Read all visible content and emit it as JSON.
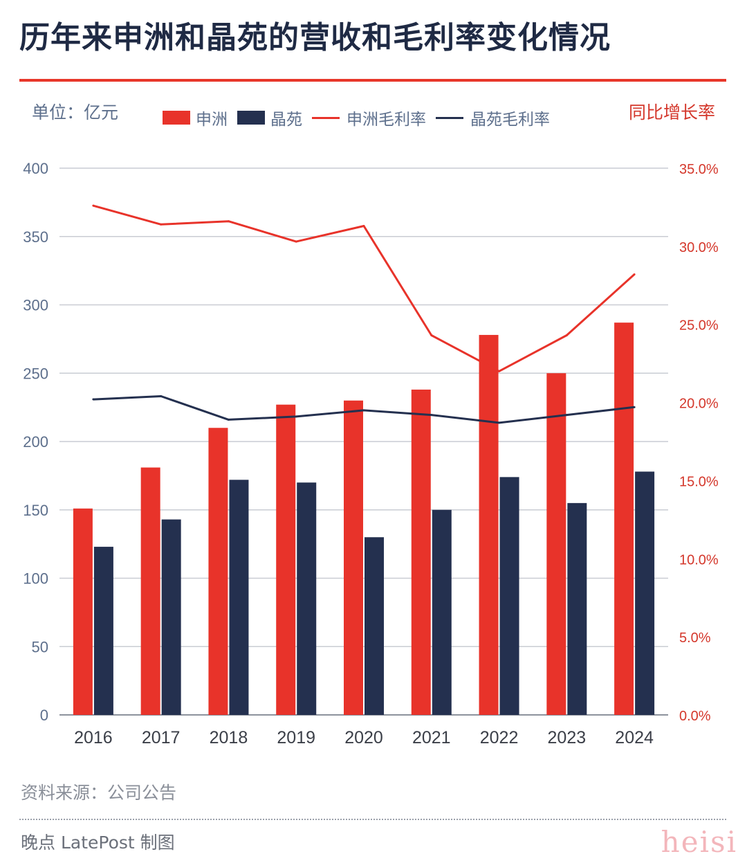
{
  "title": "历年来申洲和晶苑的营收和毛利率变化情况",
  "unit_label": "单位：亿元",
  "right_axis_label": "同比增长率",
  "legend": {
    "shenzhou_bar": "申洲",
    "jingyuan_bar": "晶苑",
    "shenzhou_line": "申洲毛利率",
    "jingyuan_line": "晶苑毛利率"
  },
  "colors": {
    "shenzhou": "#e8332a",
    "jingyuan": "#24304f",
    "grid": "#c9ccd3",
    "left_tick": "#5d6f8c",
    "right_tick": "#d4372b",
    "x_tick": "#3b3f48"
  },
  "footer": {
    "source": "资料来源：公司公告",
    "brand": "晚点 LatePost 制图",
    "corner_mark": "heisi"
  },
  "chart_data": {
    "type": "bar",
    "title": "历年来申洲和晶苑的营收和毛利率变化情况",
    "categories": [
      "2016",
      "2017",
      "2018",
      "2019",
      "2020",
      "2021",
      "2022",
      "2023",
      "2024"
    ],
    "series": [
      {
        "name": "申洲",
        "kind": "bar",
        "axis": "left",
        "values": [
          151,
          181,
          210,
          227,
          230,
          238,
          278,
          250,
          287
        ]
      },
      {
        "name": "晶苑",
        "kind": "bar",
        "axis": "left",
        "values": [
          123,
          143,
          172,
          170,
          130,
          150,
          174,
          155,
          178
        ]
      },
      {
        "name": "申洲毛利率",
        "kind": "line",
        "axis": "right",
        "values": [
          32.6,
          31.4,
          31.6,
          30.3,
          31.3,
          24.3,
          22.0,
          24.3,
          28.2
        ]
      },
      {
        "name": "晶苑毛利率",
        "kind": "line",
        "axis": "right",
        "values": [
          20.2,
          20.4,
          18.9,
          19.1,
          19.5,
          19.2,
          18.7,
          19.2,
          19.7
        ]
      }
    ],
    "ylabel": "单位：亿元",
    "ylabel_right": "同比增长率",
    "ylim": [
      0,
      400
    ],
    "yticks": [
      "0",
      "50",
      "100",
      "150",
      "200",
      "250",
      "300",
      "350",
      "400"
    ],
    "ylim_right": [
      0,
      35
    ],
    "yticks_right": [
      "0.0%",
      "5.0%",
      "10.0%",
      "15.0%",
      "20.0%",
      "25.0%",
      "30.0%",
      "35.0%"
    ],
    "grid": true,
    "legend_position": "top"
  }
}
